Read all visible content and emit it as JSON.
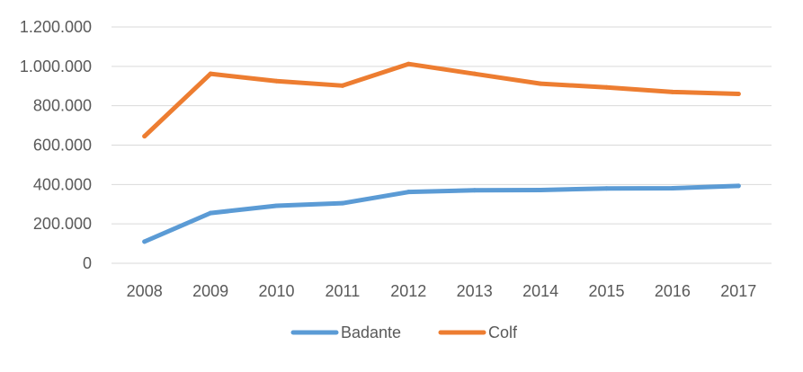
{
  "chart_data": {
    "type": "line",
    "categories": [
      "2008",
      "2009",
      "2010",
      "2011",
      "2012",
      "2013",
      "2014",
      "2015",
      "2016",
      "2017"
    ],
    "series": [
      {
        "name": "Badante",
        "color": "#5b9bd5",
        "values": [
          110000,
          255000,
          292000,
          305000,
          362000,
          371000,
          372000,
          380000,
          381000,
          393000
        ]
      },
      {
        "name": "Colf",
        "color": "#ed7d31",
        "values": [
          645000,
          962000,
          925000,
          902000,
          1012000,
          962000,
          912000,
          893000,
          870000,
          860000
        ]
      }
    ],
    "ylim": [
      0,
      1200000
    ],
    "yticks": [
      {
        "value": 0,
        "label": "0"
      },
      {
        "value": 200000,
        "label": "200.000"
      },
      {
        "value": 400000,
        "label": "400.000"
      },
      {
        "value": 600000,
        "label": "600.000"
      },
      {
        "value": 800000,
        "label": "800.000"
      },
      {
        "value": 1000000,
        "label": "1.000.000"
      },
      {
        "value": 1200000,
        "label": "1.200.000"
      }
    ],
    "title": "",
    "xlabel": "",
    "ylabel": "",
    "grid": true,
    "legend_position": "bottom"
  }
}
